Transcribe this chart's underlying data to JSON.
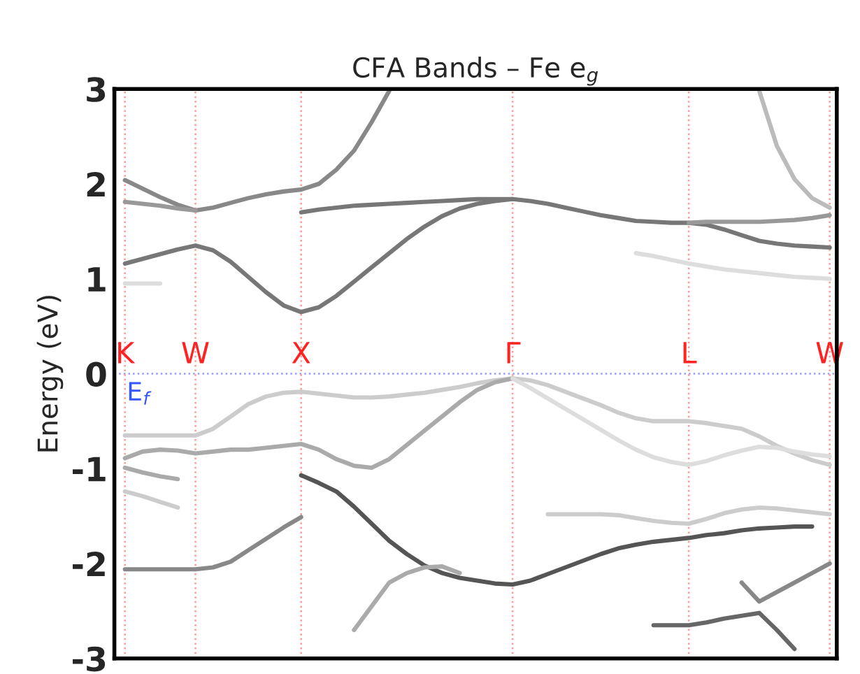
{
  "chart_data": {
    "type": "line",
    "title": "CFA Bands – Fe e$_{g}$",
    "ylabel": "Energy (eV)",
    "categories": [
      "K",
      null,
      null,
      null,
      "W",
      null,
      null,
      null,
      null,
      null,
      "X",
      null,
      null,
      null,
      null,
      null,
      null,
      null,
      null,
      null,
      null,
      null,
      "Γ",
      null,
      null,
      null,
      null,
      null,
      null,
      null,
      null,
      null,
      "L",
      null,
      null,
      null,
      null,
      null,
      null,
      null,
      "W"
    ],
    "ylim": [
      -3,
      3
    ],
    "yticks": [
      {
        "value": -3,
        "label": "-3"
      },
      {
        "value": -2,
        "label": "-2"
      },
      {
        "value": -1,
        "label": "-1"
      },
      0,
      1,
      2,
      3
    ],
    "grid": "x",
    "marker": "none",
    "line_style": "solid",
    "ref_lines": [
      {
        "axis": "y",
        "value": 0,
        "label": "E$_{f}$",
        "color": "#9999ff",
        "line_style": "dotted"
      }
    ],
    "series": [
      {
        "color": "#888888",
        "values": [
          2.04,
          1.95,
          1.86,
          1.78,
          1.72,
          1.75,
          1.8,
          1.85,
          1.89,
          1.92,
          1.94,
          2.0,
          2.15,
          2.35,
          2.65,
          2.98,
          null,
          null,
          null,
          null,
          null,
          null,
          null,
          null,
          null,
          null,
          null,
          null,
          null,
          null,
          null,
          null,
          null,
          null,
          null,
          null,
          null,
          null,
          null,
          null,
          null
        ]
      },
      {
        "color": "#999999",
        "values": [
          1.81,
          1.79,
          1.77,
          1.74,
          1.72,
          null,
          null,
          null,
          null,
          null,
          null,
          null,
          null,
          null,
          null,
          null,
          null,
          null,
          null,
          null,
          null,
          null,
          null,
          null,
          null,
          null,
          null,
          null,
          null,
          null,
          null,
          null,
          null,
          null,
          null,
          null,
          null,
          null,
          null,
          null,
          null
        ]
      },
      {
        "color": "#777777",
        "values": [
          1.16,
          1.21,
          1.26,
          1.31,
          1.35,
          1.3,
          1.18,
          1.02,
          0.86,
          0.72,
          0.65,
          0.7,
          0.82,
          0.97,
          1.12,
          1.27,
          1.42,
          1.55,
          1.66,
          1.74,
          1.79,
          1.82,
          1.84,
          null,
          null,
          null,
          null,
          null,
          null,
          null,
          null,
          null,
          null,
          null,
          null,
          null,
          null,
          null,
          null,
          null,
          null
        ]
      },
      {
        "color": "#777777",
        "values": [
          null,
          null,
          null,
          null,
          null,
          null,
          null,
          null,
          null,
          null,
          1.7,
          1.73,
          1.75,
          1.77,
          1.78,
          1.79,
          1.8,
          1.81,
          1.82,
          1.83,
          1.84,
          1.84,
          1.84,
          1.82,
          1.79,
          1.75,
          1.71,
          1.67,
          1.64,
          1.61,
          1.6,
          1.59,
          1.59,
          1.57,
          1.52,
          1.46,
          1.4,
          1.37,
          1.35,
          1.34,
          1.33
        ]
      },
      {
        "color": "#999999",
        "values": [
          null,
          null,
          null,
          null,
          null,
          null,
          null,
          null,
          null,
          null,
          null,
          null,
          null,
          null,
          null,
          null,
          null,
          null,
          null,
          null,
          null,
          null,
          null,
          null,
          null,
          null,
          null,
          null,
          null,
          null,
          null,
          null,
          1.59,
          1.6,
          1.6,
          1.6,
          1.6,
          1.61,
          1.62,
          1.64,
          1.67
        ]
      },
      {
        "color": "#bbbbbb",
        "values": [
          null,
          null,
          null,
          null,
          null,
          null,
          null,
          null,
          null,
          null,
          null,
          null,
          null,
          null,
          null,
          null,
          null,
          null,
          null,
          null,
          null,
          null,
          null,
          null,
          null,
          null,
          null,
          null,
          null,
          null,
          null,
          null,
          null,
          null,
          null,
          null,
          2.98,
          2.4,
          2.05,
          1.85,
          1.75
        ]
      },
      {
        "color": "#dddddd",
        "values": [
          null,
          null,
          null,
          null,
          null,
          null,
          null,
          null,
          null,
          null,
          null,
          null,
          null,
          null,
          null,
          null,
          null,
          null,
          null,
          null,
          null,
          null,
          null,
          null,
          null,
          null,
          null,
          null,
          null,
          1.27,
          1.24,
          1.2,
          1.16,
          1.13,
          1.1,
          1.08,
          1.06,
          1.04,
          1.02,
          1.01,
          1.0
        ]
      },
      {
        "color": "#dddddd",
        "values": [
          0.95,
          0.95,
          0.95,
          null,
          null,
          null,
          null,
          null,
          null,
          null,
          null,
          null,
          null,
          null,
          null,
          null,
          null,
          null,
          null,
          null,
          null,
          null,
          null,
          null,
          null,
          null,
          null,
          null,
          null,
          null,
          null,
          null,
          null,
          null,
          null,
          null,
          null,
          null,
          null,
          null,
          null
        ]
      },
      {
        "color": "#cccccc",
        "values": [
          -0.65,
          -0.65,
          -0.65,
          -0.65,
          -0.65,
          -0.58,
          -0.45,
          -0.32,
          -0.24,
          -0.2,
          -0.19,
          -0.21,
          -0.23,
          -0.25,
          -0.25,
          -0.24,
          -0.22,
          -0.2,
          -0.17,
          -0.14,
          -0.1,
          -0.07,
          -0.05,
          -0.07,
          -0.12,
          -0.19,
          -0.26,
          -0.33,
          -0.41,
          -0.47,
          -0.5,
          -0.5,
          -0.5,
          -0.52,
          -0.55,
          -0.58,
          -0.66,
          -0.76,
          -0.84,
          -0.91,
          -0.96
        ]
      },
      {
        "color": "#aaaaaa",
        "values": [
          -0.89,
          -0.82,
          -0.8,
          -0.81,
          -0.84,
          -0.82,
          -0.8,
          -0.8,
          -0.78,
          -0.76,
          -0.74,
          -0.8,
          -0.9,
          -0.97,
          -0.99,
          -0.9,
          -0.75,
          -0.6,
          -0.45,
          -0.3,
          -0.17,
          -0.09,
          -0.05,
          null,
          null,
          null,
          null,
          null,
          null,
          null,
          null,
          null,
          null,
          null,
          null,
          null,
          null,
          null,
          null,
          null,
          null
        ]
      },
      {
        "color": "#dddddd",
        "values": [
          null,
          null,
          null,
          null,
          null,
          null,
          null,
          null,
          null,
          null,
          null,
          null,
          null,
          null,
          null,
          null,
          null,
          null,
          null,
          null,
          null,
          null,
          -0.05,
          -0.15,
          -0.26,
          -0.37,
          -0.48,
          -0.59,
          -0.7,
          -0.8,
          -0.88,
          -0.93,
          -0.96,
          -0.92,
          -0.86,
          -0.81,
          -0.77,
          -0.78,
          -0.82,
          -0.85,
          -0.87
        ]
      },
      {
        "color": "#aaaaaa",
        "values": [
          -0.99,
          -1.04,
          -1.08,
          -1.11,
          null,
          null,
          null,
          null,
          null,
          null,
          null,
          null,
          null,
          null,
          null,
          null,
          null,
          null,
          null,
          null,
          null,
          null,
          null,
          null,
          null,
          null,
          null,
          null,
          null,
          null,
          null,
          null,
          null,
          null,
          null,
          null,
          null,
          null,
          null,
          null,
          null
        ]
      },
      {
        "color": "#cccccc",
        "values": [
          -1.24,
          -1.29,
          -1.35,
          -1.41,
          null,
          null,
          null,
          null,
          null,
          null,
          null,
          null,
          null,
          null,
          null,
          null,
          null,
          null,
          null,
          null,
          null,
          null,
          null,
          null,
          null,
          null,
          null,
          null,
          null,
          null,
          null,
          null,
          null,
          null,
          null,
          null,
          null,
          null,
          null,
          null,
          null
        ]
      },
      {
        "color": "#888888",
        "values": [
          -2.06,
          -2.06,
          -2.06,
          -2.06,
          -2.06,
          -2.04,
          -1.98,
          -1.86,
          -1.74,
          -1.62,
          -1.51,
          null,
          null,
          null,
          null,
          null,
          null,
          null,
          null,
          null,
          null,
          null,
          null,
          null,
          null,
          null,
          null,
          null,
          null,
          null,
          null,
          null,
          null,
          null,
          null,
          null,
          null,
          null,
          null,
          null,
          null
        ]
      },
      {
        "color": "#555555",
        "values": [
          null,
          null,
          null,
          null,
          null,
          null,
          null,
          null,
          null,
          null,
          -1.07,
          -1.15,
          -1.24,
          -1.4,
          -1.58,
          -1.76,
          -1.9,
          -2.02,
          -2.1,
          -2.15,
          -2.18,
          -2.21,
          -2.22,
          -2.18,
          -2.11,
          -2.04,
          -1.97,
          -1.9,
          -1.84,
          -1.8,
          -1.77,
          -1.75,
          -1.73,
          -1.7,
          -1.68,
          -1.65,
          -1.63,
          -1.62,
          -1.61,
          -1.61,
          null
        ]
      },
      {
        "color": "#cccccc",
        "values": [
          null,
          null,
          null,
          null,
          null,
          null,
          null,
          null,
          null,
          null,
          null,
          null,
          null,
          null,
          null,
          null,
          null,
          null,
          null,
          null,
          null,
          null,
          null,
          null,
          -1.48,
          -1.48,
          -1.48,
          -1.48,
          -1.49,
          -1.52,
          -1.55,
          -1.57,
          -1.58,
          -1.53,
          -1.47,
          -1.43,
          -1.41,
          -1.42,
          -1.44,
          -1.46,
          -1.48
        ]
      },
      {
        "color": "#aaaaaa",
        "values": [
          null,
          null,
          null,
          null,
          null,
          null,
          null,
          null,
          null,
          null,
          null,
          null,
          null,
          -2.7,
          -2.45,
          -2.2,
          -2.1,
          -2.04,
          -2.03,
          -2.1,
          null,
          null,
          null,
          null,
          null,
          null,
          null,
          null,
          null,
          null,
          null,
          null,
          null,
          null,
          null,
          null,
          null,
          null,
          null,
          null,
          null
        ]
      },
      {
        "color": "#888888",
        "values": [
          null,
          null,
          null,
          null,
          null,
          null,
          null,
          null,
          null,
          null,
          null,
          null,
          null,
          null,
          null,
          null,
          null,
          null,
          null,
          null,
          null,
          null,
          null,
          null,
          null,
          null,
          null,
          null,
          null,
          null,
          null,
          null,
          null,
          null,
          null,
          -2.2,
          -2.4,
          -2.3,
          -2.2,
          -2.1,
          -2.0
        ]
      },
      {
        "color": "#666666",
        "values": [
          null,
          null,
          null,
          null,
          null,
          null,
          null,
          null,
          null,
          null,
          null,
          null,
          null,
          null,
          null,
          null,
          null,
          null,
          null,
          null,
          null,
          null,
          null,
          null,
          null,
          null,
          null,
          null,
          null,
          null,
          -2.65,
          -2.65,
          -2.65,
          -2.62,
          -2.58,
          -2.55,
          -2.52,
          -2.7,
          -2.9,
          null,
          null
        ]
      }
    ]
  }
}
